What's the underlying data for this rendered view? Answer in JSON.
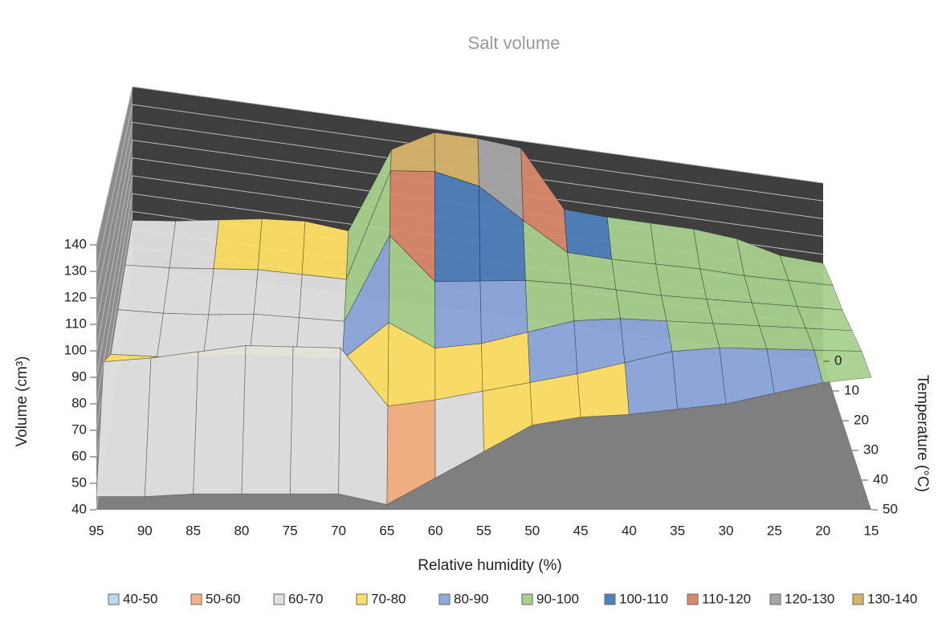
{
  "chart_data": {
    "type": "surface",
    "title": "Salt volume",
    "x_label": "Relative humidity (%)",
    "y_label": "Volume (cm³)",
    "z_label": "Temperature (°C)",
    "categories": [
      "95",
      "90",
      "85",
      "80",
      "75",
      "70",
      "65",
      "60",
      "55",
      "50",
      "45",
      "40",
      "35",
      "30",
      "25",
      "20",
      "15"
    ],
    "z_categories": [
      "0",
      "10",
      "20",
      "30",
      "40",
      "50"
    ],
    "values": [
      [
        65,
        68,
        72,
        76,
        78,
        76,
        125,
        138,
        138,
        136,
        105,
        104,
        104,
        104,
        102,
        96,
        95
      ],
      [
        65,
        66,
        68,
        70,
        70,
        70,
        128,
        130,
        125,
        110,
        96,
        95,
        95,
        95,
        94,
        94,
        94
      ],
      [
        65,
        65,
        66,
        68,
        68,
        68,
        110,
        90,
        92,
        94,
        94,
        93,
        92,
        92,
        92,
        92,
        92
      ],
      [
        65,
        65,
        66,
        68,
        68,
        68,
        85,
        75,
        78,
        84,
        90,
        92,
        92,
        92,
        92,
        92,
        92
      ],
      [
        80,
        82,
        85,
        88,
        88,
        88,
        65,
        68,
        72,
        76,
        80,
        85,
        90,
        92,
        92,
        92,
        92
      ],
      [
        45,
        45,
        46,
        46,
        46,
        46,
        42,
        52,
        62,
        72,
        75,
        76,
        78,
        80,
        84,
        88,
        90
      ]
    ],
    "ylim": [
      40,
      140
    ],
    "yticks": [
      40,
      50,
      60,
      70,
      80,
      90,
      100,
      110,
      120,
      130,
      140
    ],
    "legend_labels": [
      "40-50",
      "50-60",
      "60-70",
      "70-80",
      "80-90",
      "90-100",
      "100-110",
      "110-120",
      "120-130",
      "130-140"
    ],
    "band_colors": [
      "#bdd7ee",
      "#f4b183",
      "#e0e0e0",
      "#ffe066",
      "#8fa9dc",
      "#a9d18e",
      "#4f81bd",
      "#d9886a",
      "#a6a6a6",
      "#d6b46a"
    ]
  }
}
